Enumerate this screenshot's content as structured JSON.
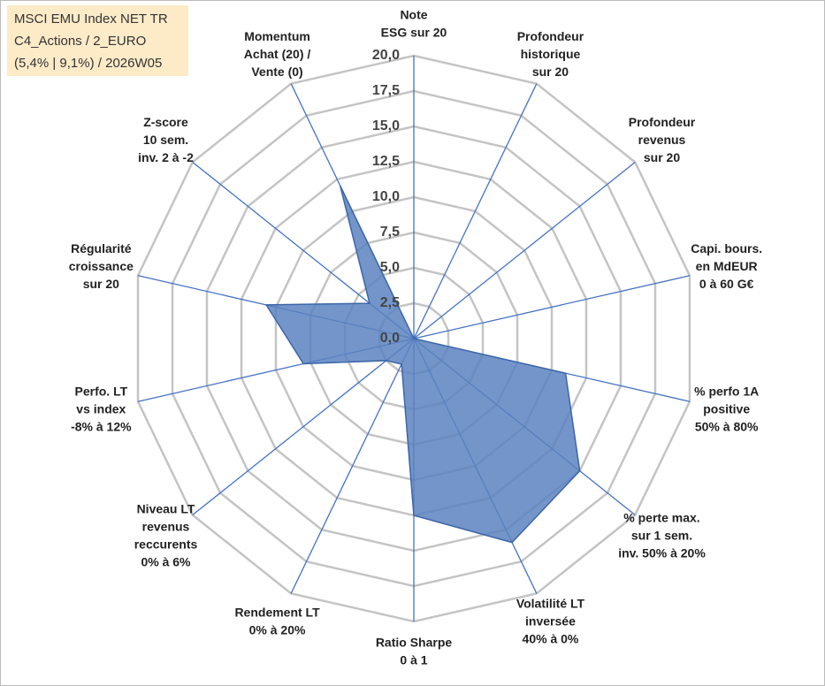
{
  "chart_data": {
    "type": "radar",
    "title": [
      "MSCI EMU Index NET TR",
      "C4_Actions / 2_EURO",
      "(5,4% | 9,1%) / 2026W05"
    ],
    "categories": [
      [
        "Note",
        "ESG sur 20"
      ],
      [
        "Profondeur",
        "historique",
        "sur 20"
      ],
      [
        "Profondeur",
        "revenus",
        "sur 20"
      ],
      [
        "Capi. bours.",
        "en MdEUR",
        "0 à 60 G€"
      ],
      [
        "% perfo 1A",
        "positive",
        "50% à 80%"
      ],
      [
        "% perte max.",
        "sur 1 sem.",
        "inv. 50% à 20%"
      ],
      [
        "Volatilité LT",
        "inversée",
        "40% à 0%"
      ],
      [
        "Ratio Sharpe",
        "0 à 1"
      ],
      [
        "Rendement LT",
        "0% à 20%"
      ],
      [
        "Niveau LT",
        "revenus",
        "reccurents",
        "0% à 6%"
      ],
      [
        "Perfo. LT",
        "vs index",
        "-8% à 12%"
      ],
      [
        "Régularité",
        "croissance",
        "sur 20"
      ],
      [
        "Z-score",
        "10 sem.",
        "inv. 2 à -2"
      ],
      [
        "Momentum",
        "Achat (20) /",
        "Vente (0)"
      ]
    ],
    "series": [
      {
        "color": "#5a82c0",
        "values": [
          0,
          0,
          0,
          0,
          11,
          15,
          16,
          12.5,
          2,
          2.5,
          8,
          10.7,
          4,
          12
        ]
      }
    ],
    "ylim": [
      0,
      20
    ],
    "yticks": [
      {
        "value": 0,
        "label": "0,0"
      },
      {
        "value": 2.5,
        "label": "2,5"
      },
      {
        "value": 5,
        "label": "5,0"
      },
      {
        "value": 7.5,
        "label": "7,5"
      },
      {
        "value": 10,
        "label": "10,0"
      },
      {
        "value": 12.5,
        "label": "12,5"
      },
      {
        "value": 15,
        "label": "15,0"
      },
      {
        "value": 17.5,
        "label": "17,5"
      },
      {
        "value": 20,
        "label": "20,0"
      }
    ],
    "grid": true
  }
}
